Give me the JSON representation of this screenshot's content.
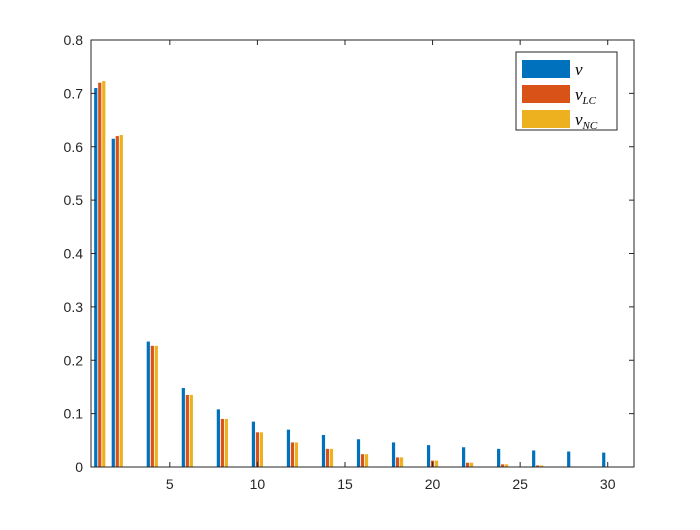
{
  "chart_data": {
    "type": "bar",
    "x": [
      1,
      2,
      4,
      6,
      8,
      10,
      12,
      14,
      16,
      18,
      20,
      22,
      24,
      26,
      28,
      30
    ],
    "series": [
      {
        "name": "v",
        "legend_main": "v",
        "legend_sub": "",
        "color": "#0072BD",
        "values": [
          0.71,
          0.615,
          0.235,
          0.148,
          0.108,
          0.085,
          0.07,
          0.06,
          0.052,
          0.046,
          0.041,
          0.037,
          0.034,
          0.031,
          0.029,
          0.027
        ]
      },
      {
        "name": "v_LC",
        "legend_main": "v",
        "legend_sub": "LC",
        "color": "#D95319",
        "values": [
          0.72,
          0.62,
          0.227,
          0.135,
          0.09,
          0.065,
          0.046,
          0.034,
          0.024,
          0.018,
          0.012,
          0.008,
          0.005,
          0.003,
          0.001,
          0.0
        ]
      },
      {
        "name": "v_NC",
        "legend_main": "v",
        "legend_sub": "NC",
        "color": "#EDB120",
        "values": [
          0.723,
          0.622,
          0.227,
          0.135,
          0.09,
          0.065,
          0.046,
          0.034,
          0.024,
          0.018,
          0.012,
          0.008,
          0.005,
          0.003,
          0.001,
          0.0
        ]
      }
    ],
    "xlim": [
      0.5,
      31.5
    ],
    "ylim": [
      0,
      0.8
    ],
    "xticks": [
      5,
      10,
      15,
      20,
      25,
      30
    ],
    "yticks": [
      0,
      0.1,
      0.2,
      0.3,
      0.4,
      0.5,
      0.6,
      0.7,
      0.8
    ],
    "xtick_labels": [
      "5",
      "10",
      "15",
      "20",
      "25",
      "30"
    ],
    "ytick_labels": [
      "0",
      "0.1",
      "0.2",
      "0.3",
      "0.4",
      "0.5",
      "0.6",
      "0.7",
      "0.8"
    ],
    "title": "",
    "xlabel": "",
    "ylabel": "",
    "grid": false,
    "legend_position": "top-right"
  }
}
